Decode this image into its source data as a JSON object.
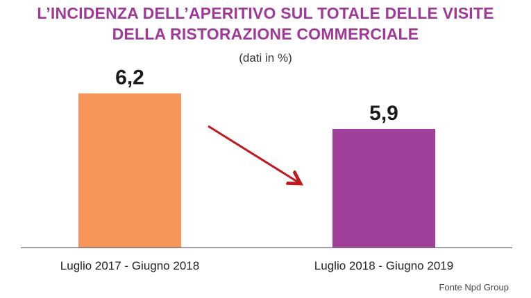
{
  "title_line1": "L’INCIDENZA DELL’APERITIVO SUL TOTALE DELLE VISITE",
  "title_line2": "DELLA RISTORAZIONE COMMERCIALE",
  "subtitle": "(dati in %)",
  "source": "Fonte Npd Group",
  "colors": {
    "title": "#a0389a",
    "bar1": "#f7955b",
    "bar2": "#a1409b",
    "arrow": "#c0181e",
    "axis": "#777777"
  },
  "chart_data": {
    "type": "bar",
    "categories": [
      "Luglio 2017 - Giugno 2018",
      "Luglio 2018 - Giugno 2019"
    ],
    "values": [
      6.2,
      5.9
    ],
    "value_labels": [
      "6,2",
      "5,9"
    ],
    "title": "L’INCIDENZA DELL’APERITIVO SUL TOTALE DELLE VISITE DELLA RISTORAZIONE COMMERCIALE",
    "subtitle": "(dati in %)",
    "xlabel": "",
    "ylabel": "",
    "grid": false,
    "legend": "none",
    "annotations": [
      "down-arrow from first bar to second bar"
    ]
  }
}
